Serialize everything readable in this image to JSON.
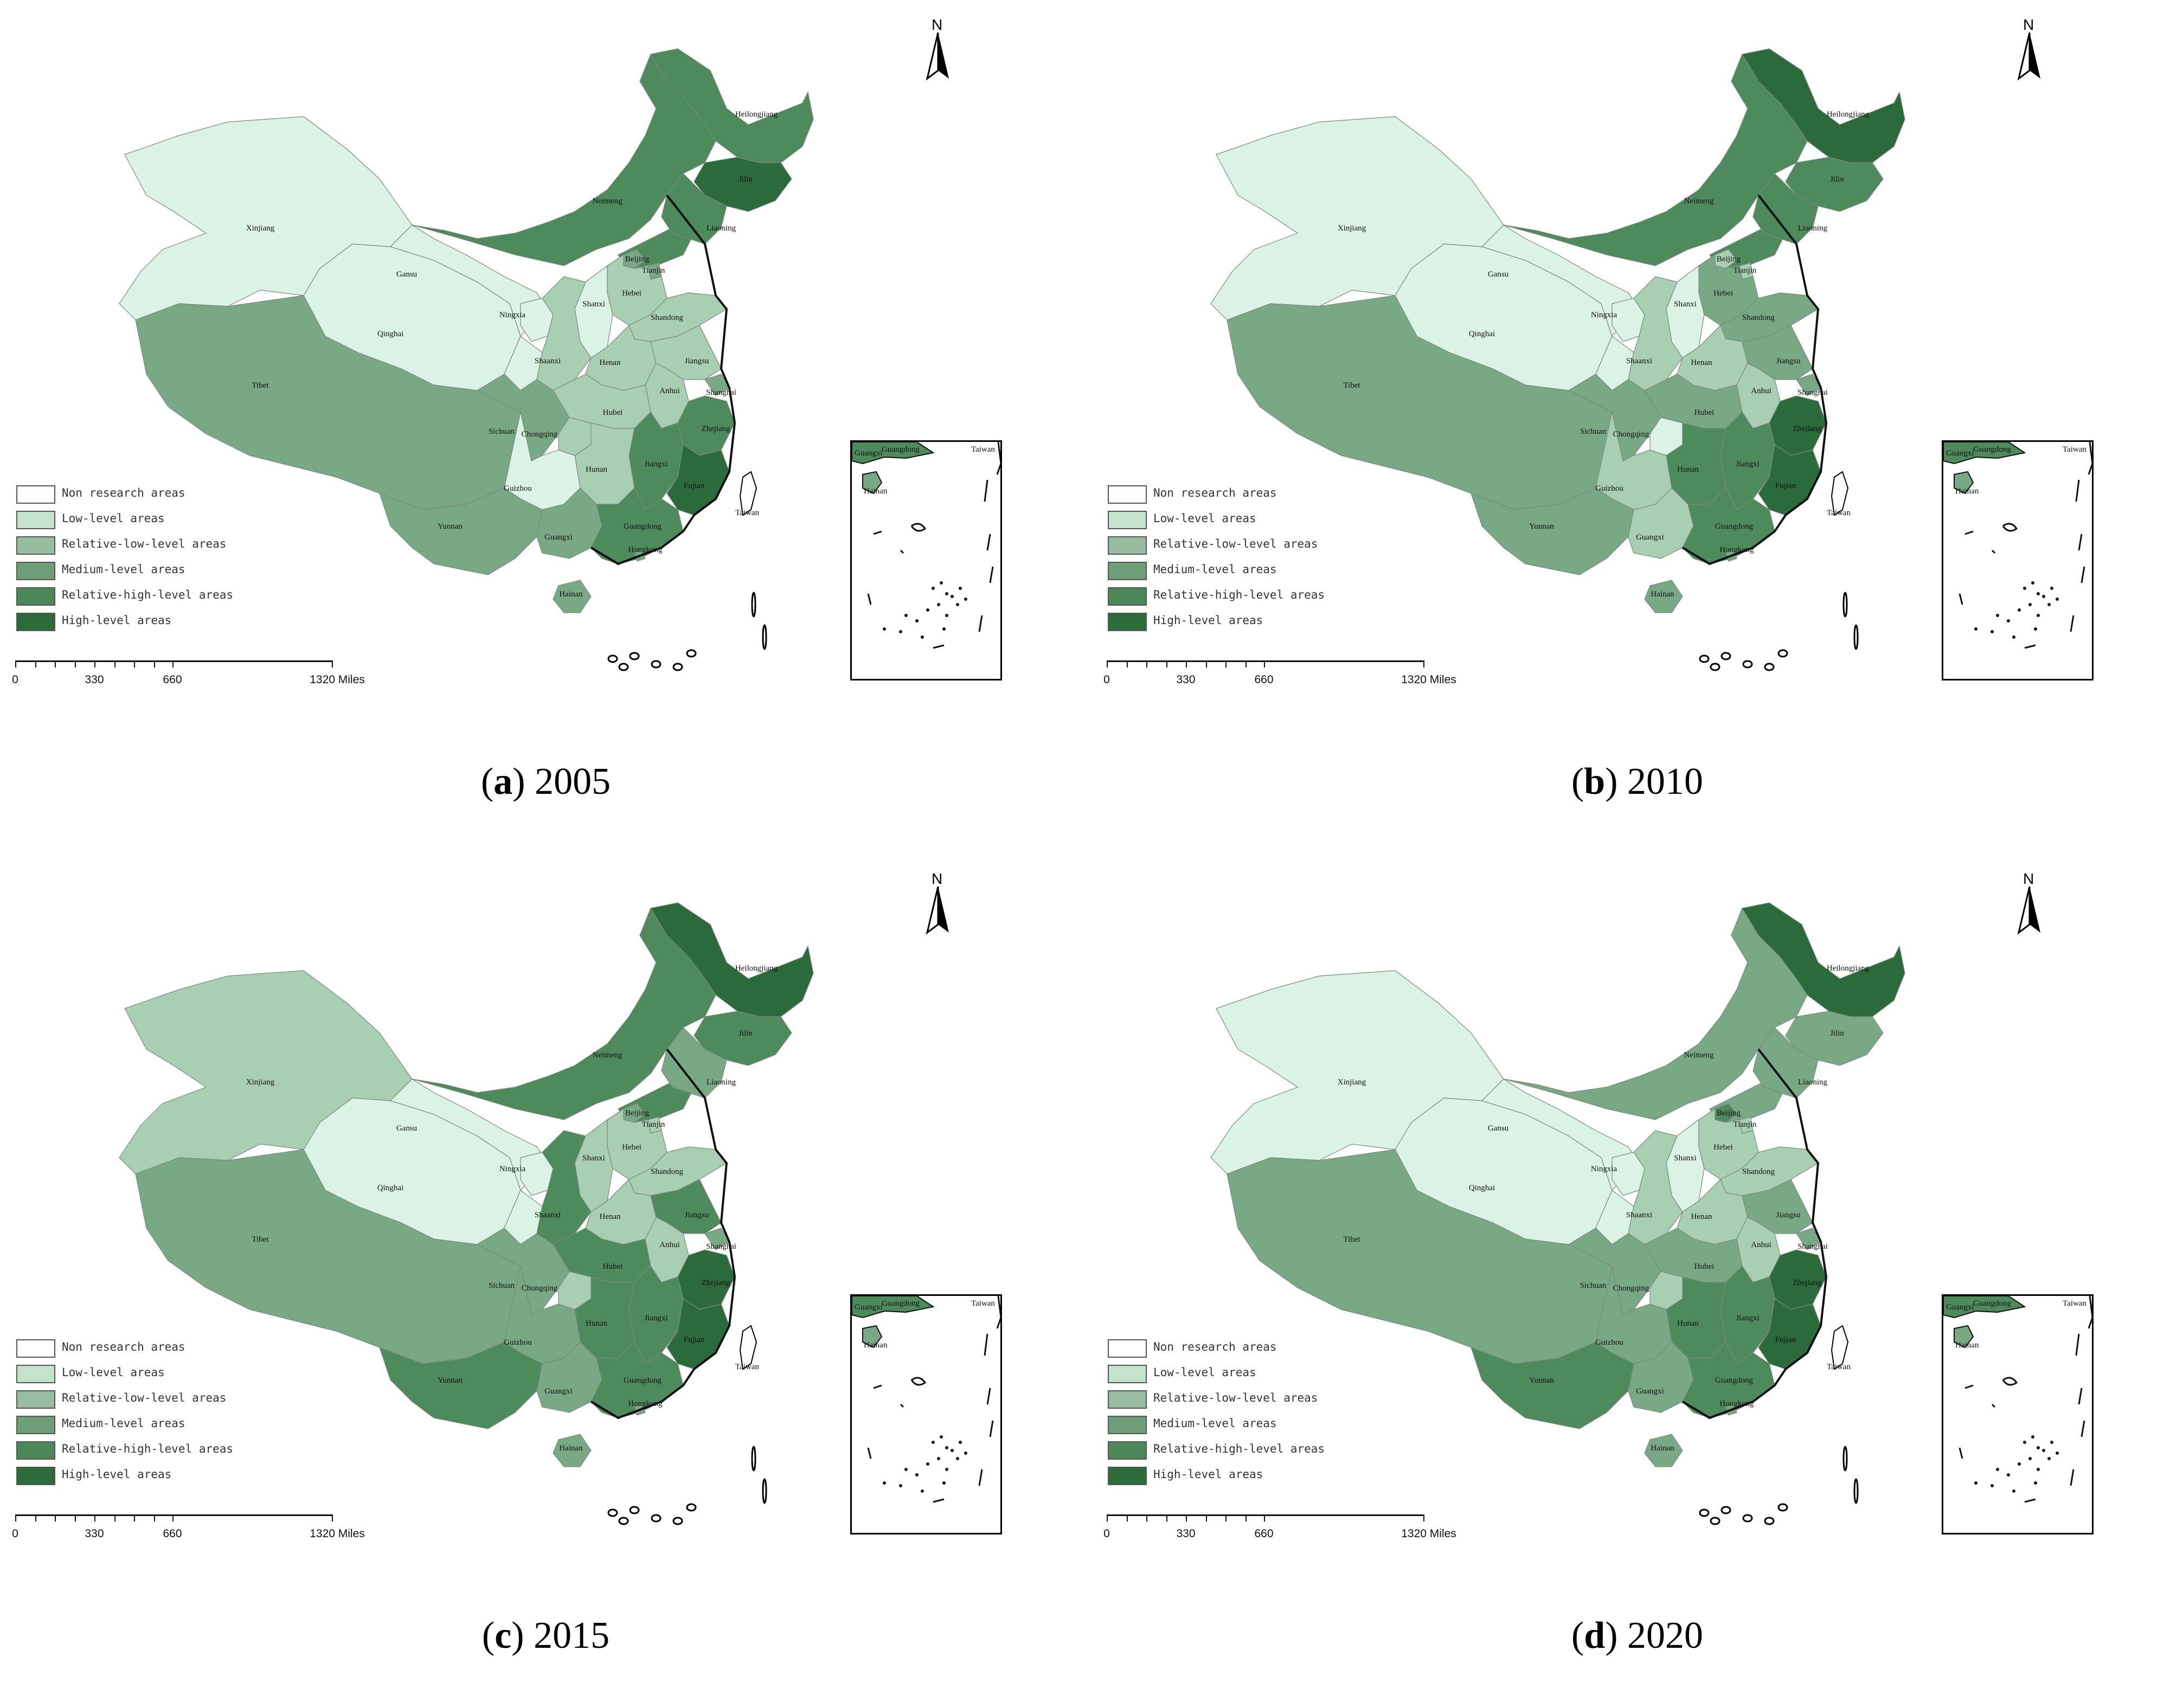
{
  "legend": {
    "items": [
      {
        "label": "Non research areas",
        "color": "#ffffff"
      },
      {
        "label": "Low-level areas",
        "color": "#c4e2cc"
      },
      {
        "label": "Relative-low-level areas",
        "color": "#97bd9e"
      },
      {
        "label": "Medium-level areas",
        "color": "#6d9e77"
      },
      {
        "label": "Relative-high-level areas",
        "color": "#4b8758"
      },
      {
        "label": "High-level areas",
        "color": "#2c6b3a"
      }
    ]
  },
  "scale_bar": {
    "ticks": [
      "0",
      "330",
      "660",
      "1320 Miles"
    ]
  },
  "north_arrow": {
    "label": "N",
    "icon": "north-arrow-icon"
  },
  "inset": {
    "labels": [
      "Guangxi",
      "Guangdong",
      "Taiwan",
      "Hainan"
    ]
  },
  "panels": [
    {
      "letter": "a",
      "year": "2005",
      "classes": {
        "Xinjiang": "low",
        "Gansu": "low",
        "Qinghai": "low",
        "Tibet": "medium",
        "Neimeng": "rhigh",
        "Heilongjiang": "rhigh",
        "Jilin": "high",
        "Liaoning": "rhigh",
        "Beijing": "medium",
        "Tianjin": "medium",
        "Hebei": "rlow",
        "Shanxi": "low",
        "Shandong": "rlow",
        "Ningxia": "low",
        "Shaanxi": "rlow",
        "Henan": "rlow",
        "Jiangsu": "rlow",
        "Anhui": "rlow",
        "Shanghai": "medium",
        "Hubei": "rlow",
        "Sichuan": "medium",
        "Chongqing": "rlow",
        "Zhejiang": "rhigh",
        "Jiangxi": "rhigh",
        "Hunan": "rlow",
        "Guizhou": "low",
        "Fujian": "high",
        "Yunnan": "medium",
        "Guangxi": "medium",
        "Guangdong": "rhigh",
        "Hainan": "medium",
        "Taiwan": "none",
        "Hongkong": "medium"
      }
    },
    {
      "letter": "b",
      "year": "2010",
      "classes": {
        "Xinjiang": "low",
        "Gansu": "low",
        "Qinghai": "low",
        "Tibet": "medium",
        "Neimeng": "rhigh",
        "Heilongjiang": "high",
        "Jilin": "rhigh",
        "Liaoning": "rhigh",
        "Beijing": "rlow",
        "Tianjin": "rlow",
        "Hebei": "medium",
        "Shanxi": "low",
        "Shandong": "medium",
        "Ningxia": "low",
        "Shaanxi": "rlow",
        "Henan": "rlow",
        "Jiangsu": "medium",
        "Anhui": "rlow",
        "Shanghai": "medium",
        "Hubei": "medium",
        "Sichuan": "medium",
        "Chongqing": "low",
        "Zhejiang": "high",
        "Jiangxi": "rhigh",
        "Hunan": "rhigh",
        "Guizhou": "rlow",
        "Fujian": "high",
        "Yunnan": "medium",
        "Guangxi": "rlow",
        "Guangdong": "rhigh",
        "Hainan": "medium",
        "Taiwan": "none",
        "Hongkong": "medium"
      }
    },
    {
      "letter": "c",
      "year": "2015",
      "classes": {
        "Xinjiang": "rlow",
        "Gansu": "low",
        "Qinghai": "low",
        "Tibet": "medium",
        "Neimeng": "rhigh",
        "Heilongjiang": "high",
        "Jilin": "rhigh",
        "Liaoning": "medium",
        "Beijing": "medium",
        "Tianjin": "rlow",
        "Hebei": "rlow",
        "Shanxi": "rlow",
        "Shandong": "rlow",
        "Ningxia": "low",
        "Shaanxi": "rhigh",
        "Henan": "rlow",
        "Jiangsu": "rhigh",
        "Anhui": "rlow",
        "Shanghai": "medium",
        "Hubei": "rhigh",
        "Sichuan": "medium",
        "Chongqing": "rlow",
        "Zhejiang": "high",
        "Jiangxi": "rhigh",
        "Hunan": "rhigh",
        "Guizhou": "medium",
        "Fujian": "high",
        "Yunnan": "rhigh",
        "Guangxi": "medium",
        "Guangdong": "rhigh",
        "Hainan": "medium",
        "Taiwan": "none",
        "Hongkong": "medium"
      }
    },
    {
      "letter": "d",
      "year": "2020",
      "classes": {
        "Xinjiang": "low",
        "Gansu": "low",
        "Qinghai": "low",
        "Tibet": "medium",
        "Neimeng": "medium",
        "Heilongjiang": "high",
        "Jilin": "medium",
        "Liaoning": "medium",
        "Beijing": "rhigh",
        "Tianjin": "rlow",
        "Hebei": "rlow",
        "Shanxi": "low",
        "Shandong": "rlow",
        "Ningxia": "low",
        "Shaanxi": "rlow",
        "Henan": "rlow",
        "Jiangsu": "medium",
        "Anhui": "rlow",
        "Shanghai": "medium",
        "Hubei": "medium",
        "Sichuan": "medium",
        "Chongqing": "rlow",
        "Zhejiang": "high",
        "Jiangxi": "rhigh",
        "Hunan": "rhigh",
        "Guizhou": "medium",
        "Fujian": "high",
        "Yunnan": "rhigh",
        "Guangxi": "medium",
        "Guangdong": "rhigh",
        "Hainan": "medium",
        "Taiwan": "none",
        "Hongkong": "medium"
      }
    }
  ],
  "province_labels": [
    "Xinjiang",
    "Gansu",
    "Qinghai",
    "Tibet",
    "Neimeng",
    "Heilongjiang",
    "Jilin",
    "Liaoning",
    "Beijing",
    "Tianjin",
    "Hebei",
    "Shanxi",
    "Shandong",
    "Ningxia",
    "Shaanxi",
    "Henan",
    "Jiangsu",
    "Anhui",
    "Shanghai",
    "Hubei",
    "Sichuan",
    "Chongqing",
    "Zhejiang",
    "Jiangxi",
    "Hunan",
    "Guizhou",
    "Fujian",
    "Yunnan",
    "Guangxi",
    "Guangdong",
    "Hainan",
    "Taiwan",
    "Hongkong"
  ],
  "class_colors": {
    "none": "#ffffff",
    "low": "#dbf3e4",
    "rlow": "#a8cfb1",
    "medium": "#78a884",
    "rhigh": "#4e8b5c",
    "high": "#2b6a3a"
  }
}
